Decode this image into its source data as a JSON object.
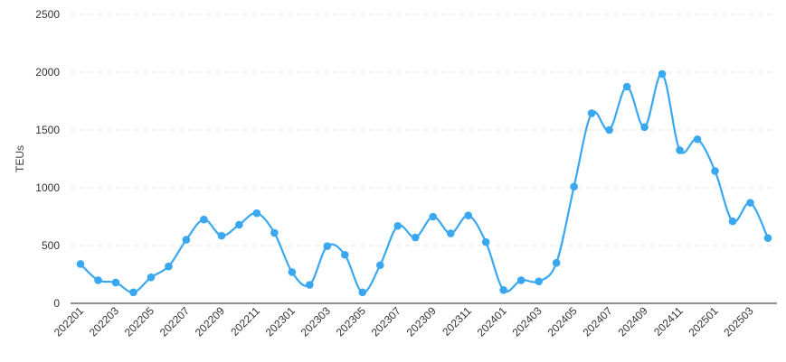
{
  "chart_data": {
    "type": "line",
    "ylabel": "TEUs",
    "ylim": [
      0,
      2500
    ],
    "yticks": [
      0,
      500,
      1000,
      1500,
      2000,
      2500
    ],
    "grid": true,
    "smooth": true,
    "line_color": "#3aa8f0",
    "x": [
      "202201",
      "202202",
      "202203",
      "202204",
      "202205",
      "202206",
      "202207",
      "202208",
      "202209",
      "202210",
      "202211",
      "202212",
      "202301",
      "202302",
      "202303",
      "202304",
      "202305",
      "202306",
      "202307",
      "202308",
      "202309",
      "202310",
      "202311",
      "202312",
      "202401",
      "202402",
      "202403",
      "202404",
      "202405",
      "202406",
      "202407",
      "202408",
      "202409",
      "202410",
      "202411",
      "202412",
      "202501",
      "202502",
      "202503",
      "202504"
    ],
    "xtick_labels": [
      "202201",
      "202203",
      "202205",
      "202207",
      "202209",
      "202211",
      "202301",
      "202303",
      "202305",
      "202307",
      "202309",
      "202311",
      "202401",
      "202403",
      "202405",
      "202407",
      "202409",
      "202411",
      "202501",
      "202503"
    ],
    "series": [
      {
        "values": [
          340,
          200,
          180,
          95,
          225,
          320,
          550,
          725,
          585,
          680,
          780,
          610,
          270,
          160,
          495,
          420,
          95,
          330,
          670,
          570,
          750,
          605,
          760,
          530,
          115,
          200,
          190,
          350,
          1010,
          1645,
          1500,
          1875,
          1525,
          1985,
          1325,
          1420,
          1145,
          710,
          870,
          565
        ]
      }
    ]
  }
}
